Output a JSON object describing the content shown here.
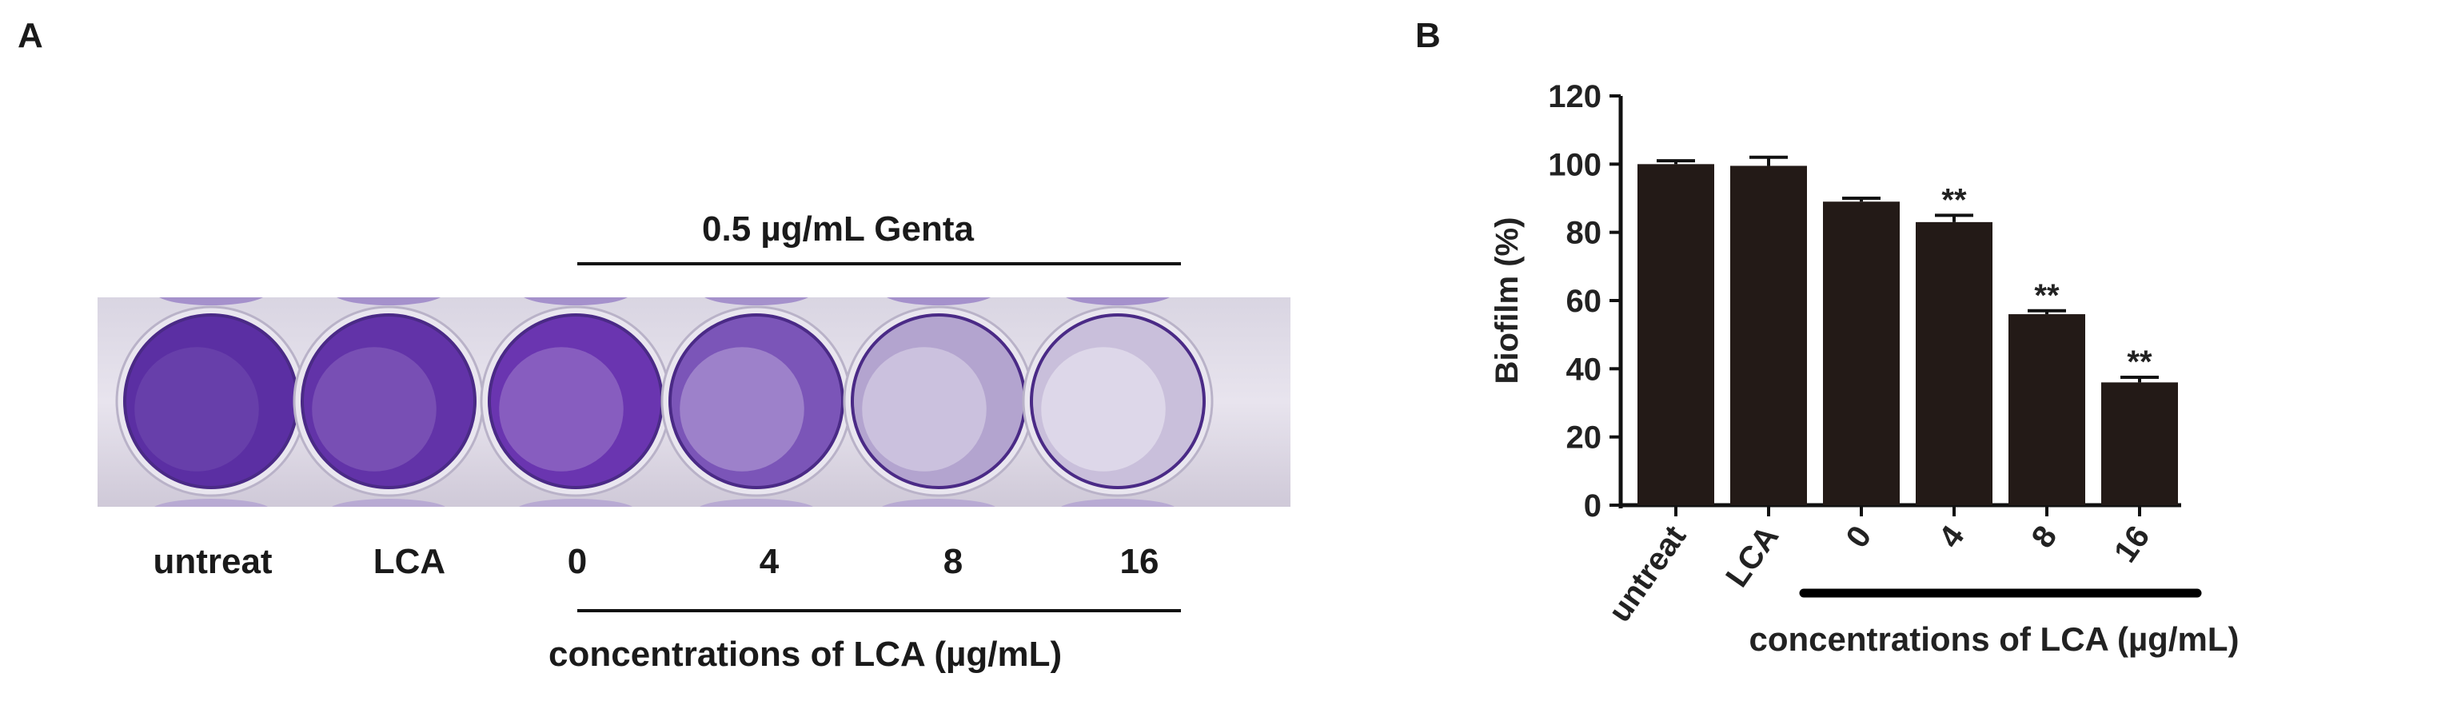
{
  "panel_a": {
    "letter": "A",
    "treatment_label": "0.5 µg/mL Genta",
    "well_labels": [
      "untreat",
      "LCA",
      "0",
      "4",
      "8",
      "16"
    ],
    "x_caption": "concentrations of LCA (µg/mL)",
    "well_colors": [
      "#5b2fa3",
      "#6233a8",
      "#6a35b0",
      "#7b55b8",
      "#b3a4cf",
      "#c9bfdb"
    ]
  },
  "panel_b": {
    "letter": "B"
  },
  "chart_data": {
    "type": "bar",
    "categories": [
      "untreat",
      "LCA",
      "0",
      "4",
      "8",
      "16"
    ],
    "values": [
      100,
      99.5,
      89,
      83,
      56,
      36
    ],
    "errors": [
      1,
      2.5,
      1,
      2,
      1,
      1.5
    ],
    "annotations": [
      "",
      "",
      "",
      "**",
      "**",
      "**"
    ],
    "ylabel": "Biofilm (%)",
    "xlabel": "concentrations of LCA (µg/mL)",
    "ylim": [
      0,
      120
    ],
    "yticks": [
      "0",
      "20",
      "40",
      "60",
      "80",
      "100",
      "120"
    ],
    "bar_color": "#231a17",
    "grid": false
  }
}
